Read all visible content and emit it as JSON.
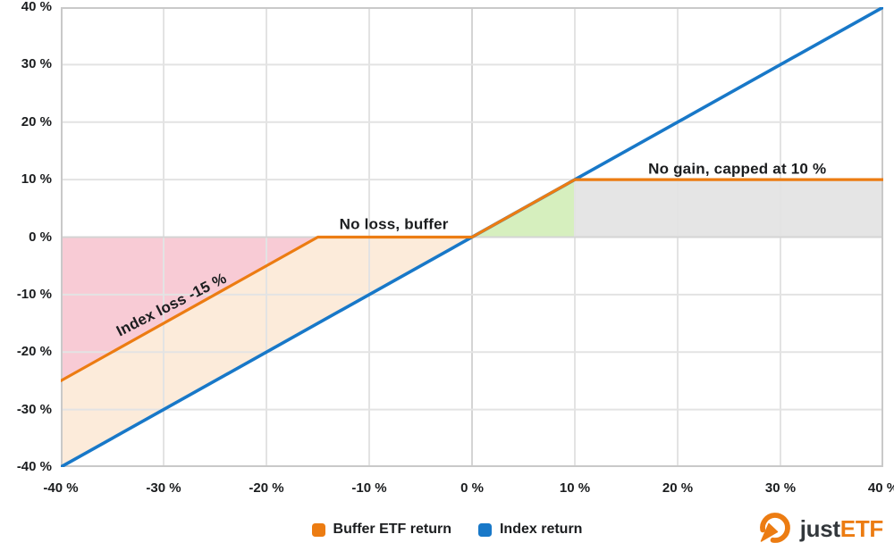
{
  "chart_data": {
    "type": "line",
    "title": "",
    "xlabel": "",
    "ylabel": "",
    "xlim": [
      -40,
      40
    ],
    "ylim": [
      -40,
      40
    ],
    "grid": true,
    "x_ticks": {
      "values": [
        -40,
        -30,
        -20,
        -10,
        0,
        10,
        20,
        30,
        40
      ],
      "labels": [
        "-40 %",
        "-30 %",
        "-20 %",
        "-10 %",
        "0 %",
        "10 %",
        "20 %",
        "30 %",
        "40 %"
      ]
    },
    "y_ticks": {
      "values": [
        40,
        30,
        20,
        10,
        0,
        -10,
        -20,
        -30,
        -40
      ],
      "labels": [
        "40 %",
        "30 %",
        "20 %",
        "10 %",
        "0 %",
        "-10 %",
        "-20 %",
        "-30 %",
        "-40 %"
      ]
    },
    "series": [
      {
        "name": "Buffer ETF return",
        "color": "#EC7C12",
        "width": 3.2,
        "points": [
          [
            -40,
            -25
          ],
          [
            -15,
            0
          ],
          [
            0,
            0
          ],
          [
            10,
            10
          ],
          [
            40,
            10
          ]
        ]
      },
      {
        "name": "Index return",
        "color": "#1878C8",
        "width": 3.6,
        "points": [
          [
            -40,
            -40
          ],
          [
            40,
            40
          ]
        ]
      }
    ],
    "regions": [
      {
        "name": "index-loss-region",
        "color": "#F8CBD5",
        "points": [
          [
            -40,
            0
          ],
          [
            -15,
            0
          ],
          [
            -40,
            -25
          ]
        ]
      },
      {
        "name": "buffer-zone-region",
        "color": "#FCEBDA",
        "points": [
          [
            -40,
            -25
          ],
          [
            -15,
            0
          ],
          [
            0,
            0
          ],
          [
            -40,
            -40
          ]
        ]
      },
      {
        "name": "gain-participation-region",
        "color": "#D6EFBE",
        "points": [
          [
            0,
            0
          ],
          [
            10,
            10
          ],
          [
            10,
            0
          ]
        ]
      },
      {
        "name": "capped-gain-region",
        "color": "#E5E5E5",
        "points": [
          [
            10,
            0
          ],
          [
            10,
            10
          ],
          [
            40,
            10
          ],
          [
            40,
            0
          ]
        ]
      }
    ],
    "annotations": [
      {
        "text": "Index loss -15 %",
        "x": -29.2,
        "y": -11.9,
        "rotation": -27
      },
      {
        "text": "No loss, buffer",
        "x": -7.6,
        "y": 2.1,
        "rotation": 0
      },
      {
        "text": "No gain, capped at 10 %",
        "x": 25.8,
        "y": 11.7,
        "rotation": 0
      }
    ],
    "legend": [
      {
        "label": "Buffer ETF return",
        "color": "#EC7C12"
      },
      {
        "label": "Index return",
        "color": "#1878C8"
      }
    ],
    "legend_position": "bottom-center",
    "colors": {
      "gridline": "#E3E3E3",
      "zeroline": "#D4D4D4",
      "border": "#C9C9C9",
      "text": "#1B1D1F"
    }
  },
  "branding": {
    "logo_text_just": "just",
    "logo_text_etf": "ETF",
    "logo_color": "#EC7C12"
  }
}
